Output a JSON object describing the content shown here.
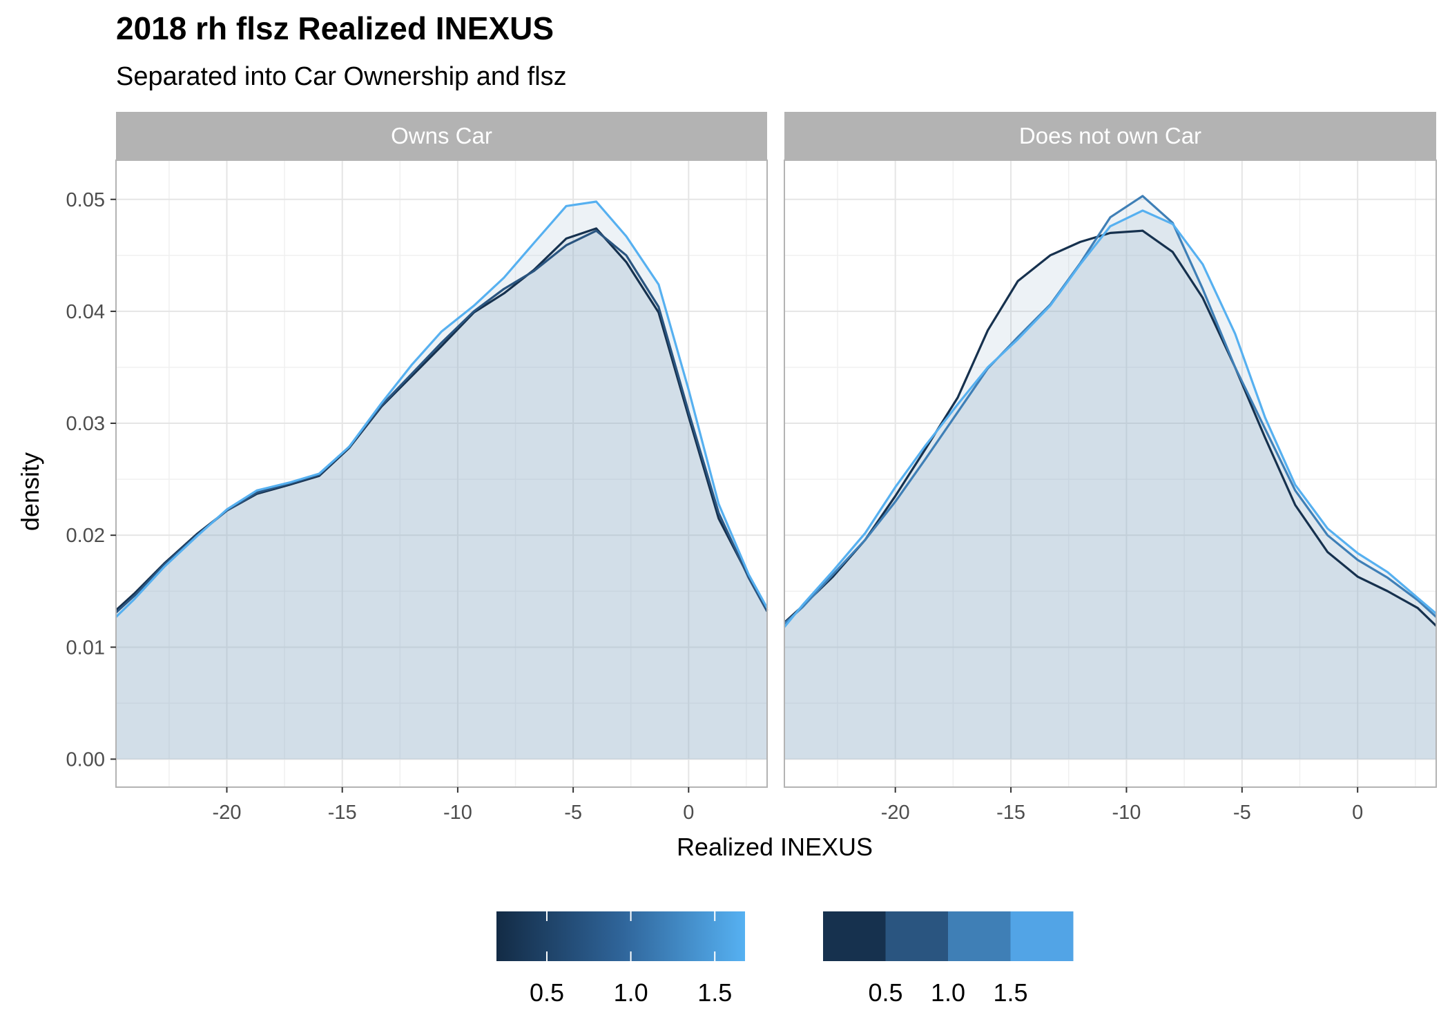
{
  "title": "2018 rh flsz Realized INEXUS",
  "subtitle": "Separated into Car Ownership and flsz",
  "chart_data": {
    "type": "area",
    "xlabel": "Realized INEXUS",
    "ylabel": "density",
    "xlim": [
      -24.8,
      3.4
    ],
    "ylim": [
      -0.0025,
      0.0535
    ],
    "xticks": [
      -20,
      -15,
      -10,
      -5,
      0
    ],
    "xtick_labels": [
      "-20",
      "-15",
      "-10",
      "-5",
      "0"
    ],
    "yticks": [
      0,
      0.01,
      0.02,
      0.03,
      0.04,
      0.05
    ],
    "ytick_labels": [
      "0.00",
      "0.01",
      "0.02",
      "0.03",
      "0.04",
      "0.05"
    ],
    "grid": true,
    "legend_placement": "bottom",
    "colors": {
      "c0": "#16314e",
      "c1": "#2a5580",
      "c2": "#3f7fb6",
      "c3": "#56b0f0",
      "fill": "#9cb5cc",
      "strip": "#b3b3b3",
      "grid": "#e5e5e5",
      "tick": "#4d4d4d"
    },
    "facets": [
      {
        "label": "Owns Car",
        "series": [
          {
            "color_key": "c0",
            "x": [
              -24.8,
              -24,
              -22.7,
              -21.3,
              -20,
              -18.7,
              -17.3,
              -16,
              -14.7,
              -13.3,
              -12,
              -10.7,
              -9.3,
              -8,
              -6.7,
              -5.3,
              -4,
              -2.7,
              -1.3,
              0,
              1.3,
              2.6,
              3.4
            ],
            "y": [
              0.0133,
              0.0148,
              0.0175,
              0.0201,
              0.0222,
              0.0237,
              0.0245,
              0.0253,
              0.0278,
              0.0315,
              0.0342,
              0.0369,
              0.0399,
              0.0416,
              0.0437,
              0.0465,
              0.0474,
              0.0444,
              0.0399,
              0.0306,
              0.0215,
              0.0163,
              0.0133
            ]
          },
          {
            "color_key": "c1",
            "x": [
              -24.8,
              -24,
              -22.7,
              -21.3,
              -20,
              -18.7,
              -17.3,
              -16,
              -14.7,
              -13.3,
              -12,
              -10.7,
              -9.3,
              -8,
              -6.7,
              -5.3,
              -4,
              -2.7,
              -1.3,
              0,
              1.3,
              2.6,
              3.4
            ],
            "y": [
              0.0131,
              0.0146,
              0.0174,
              0.02,
              0.0222,
              0.0238,
              0.0246,
              0.0254,
              0.0279,
              0.0316,
              0.0344,
              0.0372,
              0.04,
              0.042,
              0.0436,
              0.0459,
              0.0472,
              0.045,
              0.0404,
              0.031,
              0.022,
              0.0162,
              0.0132
            ]
          },
          {
            "color_key": "c3",
            "x": [
              -24.8,
              -24,
              -22.7,
              -21.3,
              -20,
              -18.7,
              -17.3,
              -16,
              -14.7,
              -13.3,
              -12,
              -10.7,
              -9.3,
              -8,
              -6.7,
              -5.3,
              -4,
              -2.7,
              -1.3,
              0,
              1.3,
              2.6,
              3.4
            ],
            "y": [
              0.0127,
              0.0143,
              0.0172,
              0.0199,
              0.0223,
              0.024,
              0.0247,
              0.0255,
              0.0279,
              0.0318,
              0.0352,
              0.0382,
              0.0405,
              0.043,
              0.0461,
              0.0494,
              0.0498,
              0.0467,
              0.0424,
              0.033,
              0.0228,
              0.0165,
              0.0135
            ]
          }
        ]
      },
      {
        "label": "Does not own Car",
        "series": [
          {
            "color_key": "c0",
            "x": [
              -24.8,
              -24,
              -22.7,
              -21.3,
              -20,
              -18.7,
              -17.3,
              -16,
              -14.7,
              -13.3,
              -12,
              -10.7,
              -9.3,
              -8,
              -6.7,
              -5.3,
              -4,
              -2.7,
              -1.3,
              0,
              1.3,
              2.6,
              3.4
            ],
            "y": [
              0.0122,
              0.0137,
              0.0163,
              0.0196,
              0.0235,
              0.0277,
              0.0323,
              0.0383,
              0.0427,
              0.045,
              0.0462,
              0.047,
              0.0472,
              0.0453,
              0.0412,
              0.035,
              0.0287,
              0.0227,
              0.0185,
              0.0163,
              0.015,
              0.0135,
              0.0119
            ]
          },
          {
            "color_key": "c2",
            "x": [
              -24.8,
              -24,
              -22.7,
              -21.3,
              -20,
              -18.7,
              -17.3,
              -16,
              -14.7,
              -13.3,
              -12,
              -10.7,
              -9.3,
              -8,
              -6.7,
              -5.3,
              -4,
              -2.7,
              -1.3,
              0,
              1.3,
              2.6,
              3.4
            ],
            "y": [
              0.0121,
              0.0136,
              0.0165,
              0.0196,
              0.023,
              0.0268,
              0.031,
              0.0349,
              0.0377,
              0.0406,
              0.0443,
              0.0484,
              0.0503,
              0.0479,
              0.042,
              0.035,
              0.0295,
              0.024,
              0.02,
              0.0178,
              0.0162,
              0.0142,
              0.0127
            ]
          },
          {
            "color_key": "c3",
            "x": [
              -24.8,
              -24,
              -22.7,
              -21.3,
              -20,
              -18.7,
              -17.3,
              -16,
              -14.7,
              -13.3,
              -12,
              -10.7,
              -9.3,
              -8,
              -6.7,
              -5.3,
              -4,
              -2.7,
              -1.3,
              0,
              1.3,
              2.6,
              3.4
            ],
            "y": [
              0.0118,
              0.0138,
              0.0168,
              0.0202,
              0.0243,
              0.028,
              0.0317,
              0.035,
              0.0375,
              0.0405,
              0.0442,
              0.0476,
              0.049,
              0.0478,
              0.0442,
              0.038,
              0.0305,
              0.0245,
              0.0206,
              0.0184,
              0.0167,
              0.0144,
              0.013
            ]
          }
        ]
      }
    ],
    "legends": [
      {
        "type": "colorbar",
        "tick_labels": [
          "0.5",
          "1.0",
          "1.5"
        ],
        "tick_values": [
          0.5,
          1.0,
          1.5
        ],
        "range": [
          0.2,
          1.68
        ]
      },
      {
        "type": "swatches",
        "colors": [
          "#16314e",
          "#2a5580",
          "#3f7fb6",
          "#52a4e6"
        ],
        "labels": [
          "0.5",
          "1.0",
          "1.5"
        ]
      }
    ]
  }
}
